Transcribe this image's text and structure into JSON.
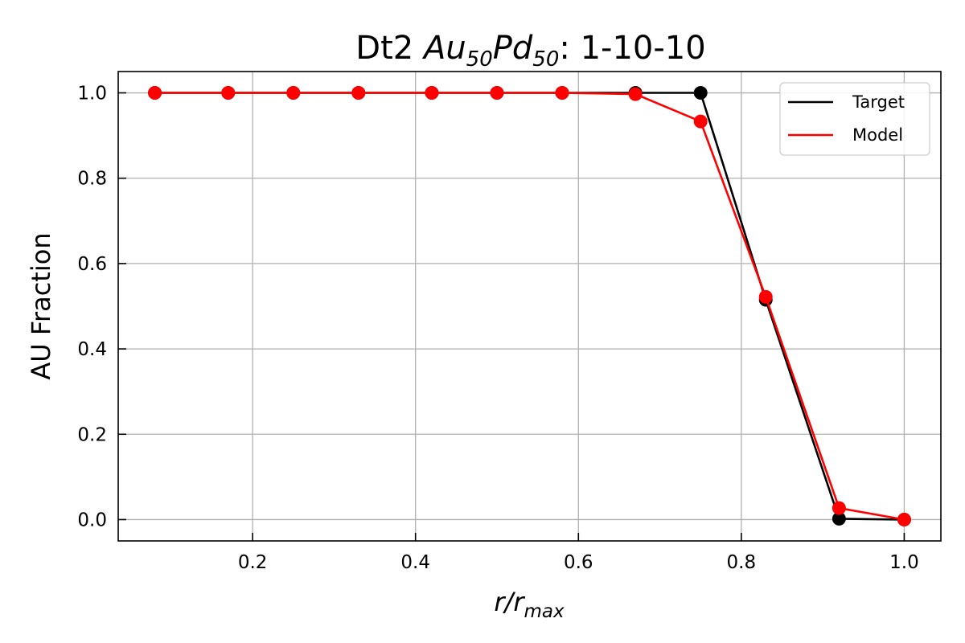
{
  "chart_data": {
    "type": "line",
    "title": {
      "prefix": "Dt2 ",
      "element_a": "Au",
      "frac_a": "50",
      "element_b": "Pd",
      "frac_b": "50",
      "suffix": ": 1-10-10"
    },
    "xlabel": {
      "main": "r/r",
      "sub": "max"
    },
    "ylabel": "AU Fraction",
    "xlim": [
      0.035,
      1.045
    ],
    "ylim": [
      -0.05,
      1.05
    ],
    "xticks": [
      0.2,
      0.4,
      0.6,
      0.8,
      1.0
    ],
    "xtick_labels": [
      "0.2",
      "0.4",
      "0.6",
      "0.8",
      "1.0"
    ],
    "yticks": [
      0.0,
      0.2,
      0.4,
      0.6,
      0.8,
      1.0
    ],
    "ytick_labels": [
      "0.0",
      "0.2",
      "0.4",
      "0.6",
      "0.8",
      "1.0"
    ],
    "grid": true,
    "legend_position": "top-right",
    "series": [
      {
        "name": "Target",
        "color": "#000000",
        "x": [
          0.08,
          0.17,
          0.25,
          0.33,
          0.42,
          0.5,
          0.58,
          0.67,
          0.75,
          0.83,
          0.92,
          1.0
        ],
        "y": [
          1.0,
          1.0,
          1.0,
          1.0,
          1.0,
          1.0,
          1.0,
          1.0,
          1.0,
          0.515,
          0.002,
          0.0
        ]
      },
      {
        "name": "Model",
        "color": "#ff0000",
        "x": [
          0.08,
          0.17,
          0.25,
          0.33,
          0.42,
          0.5,
          0.58,
          0.67,
          0.75,
          0.83,
          0.92,
          1.0
        ],
        "y": [
          1.0,
          1.0,
          1.0,
          1.0,
          1.0,
          1.0,
          1.0,
          0.997,
          0.933,
          0.522,
          0.027,
          0.0
        ]
      }
    ]
  }
}
